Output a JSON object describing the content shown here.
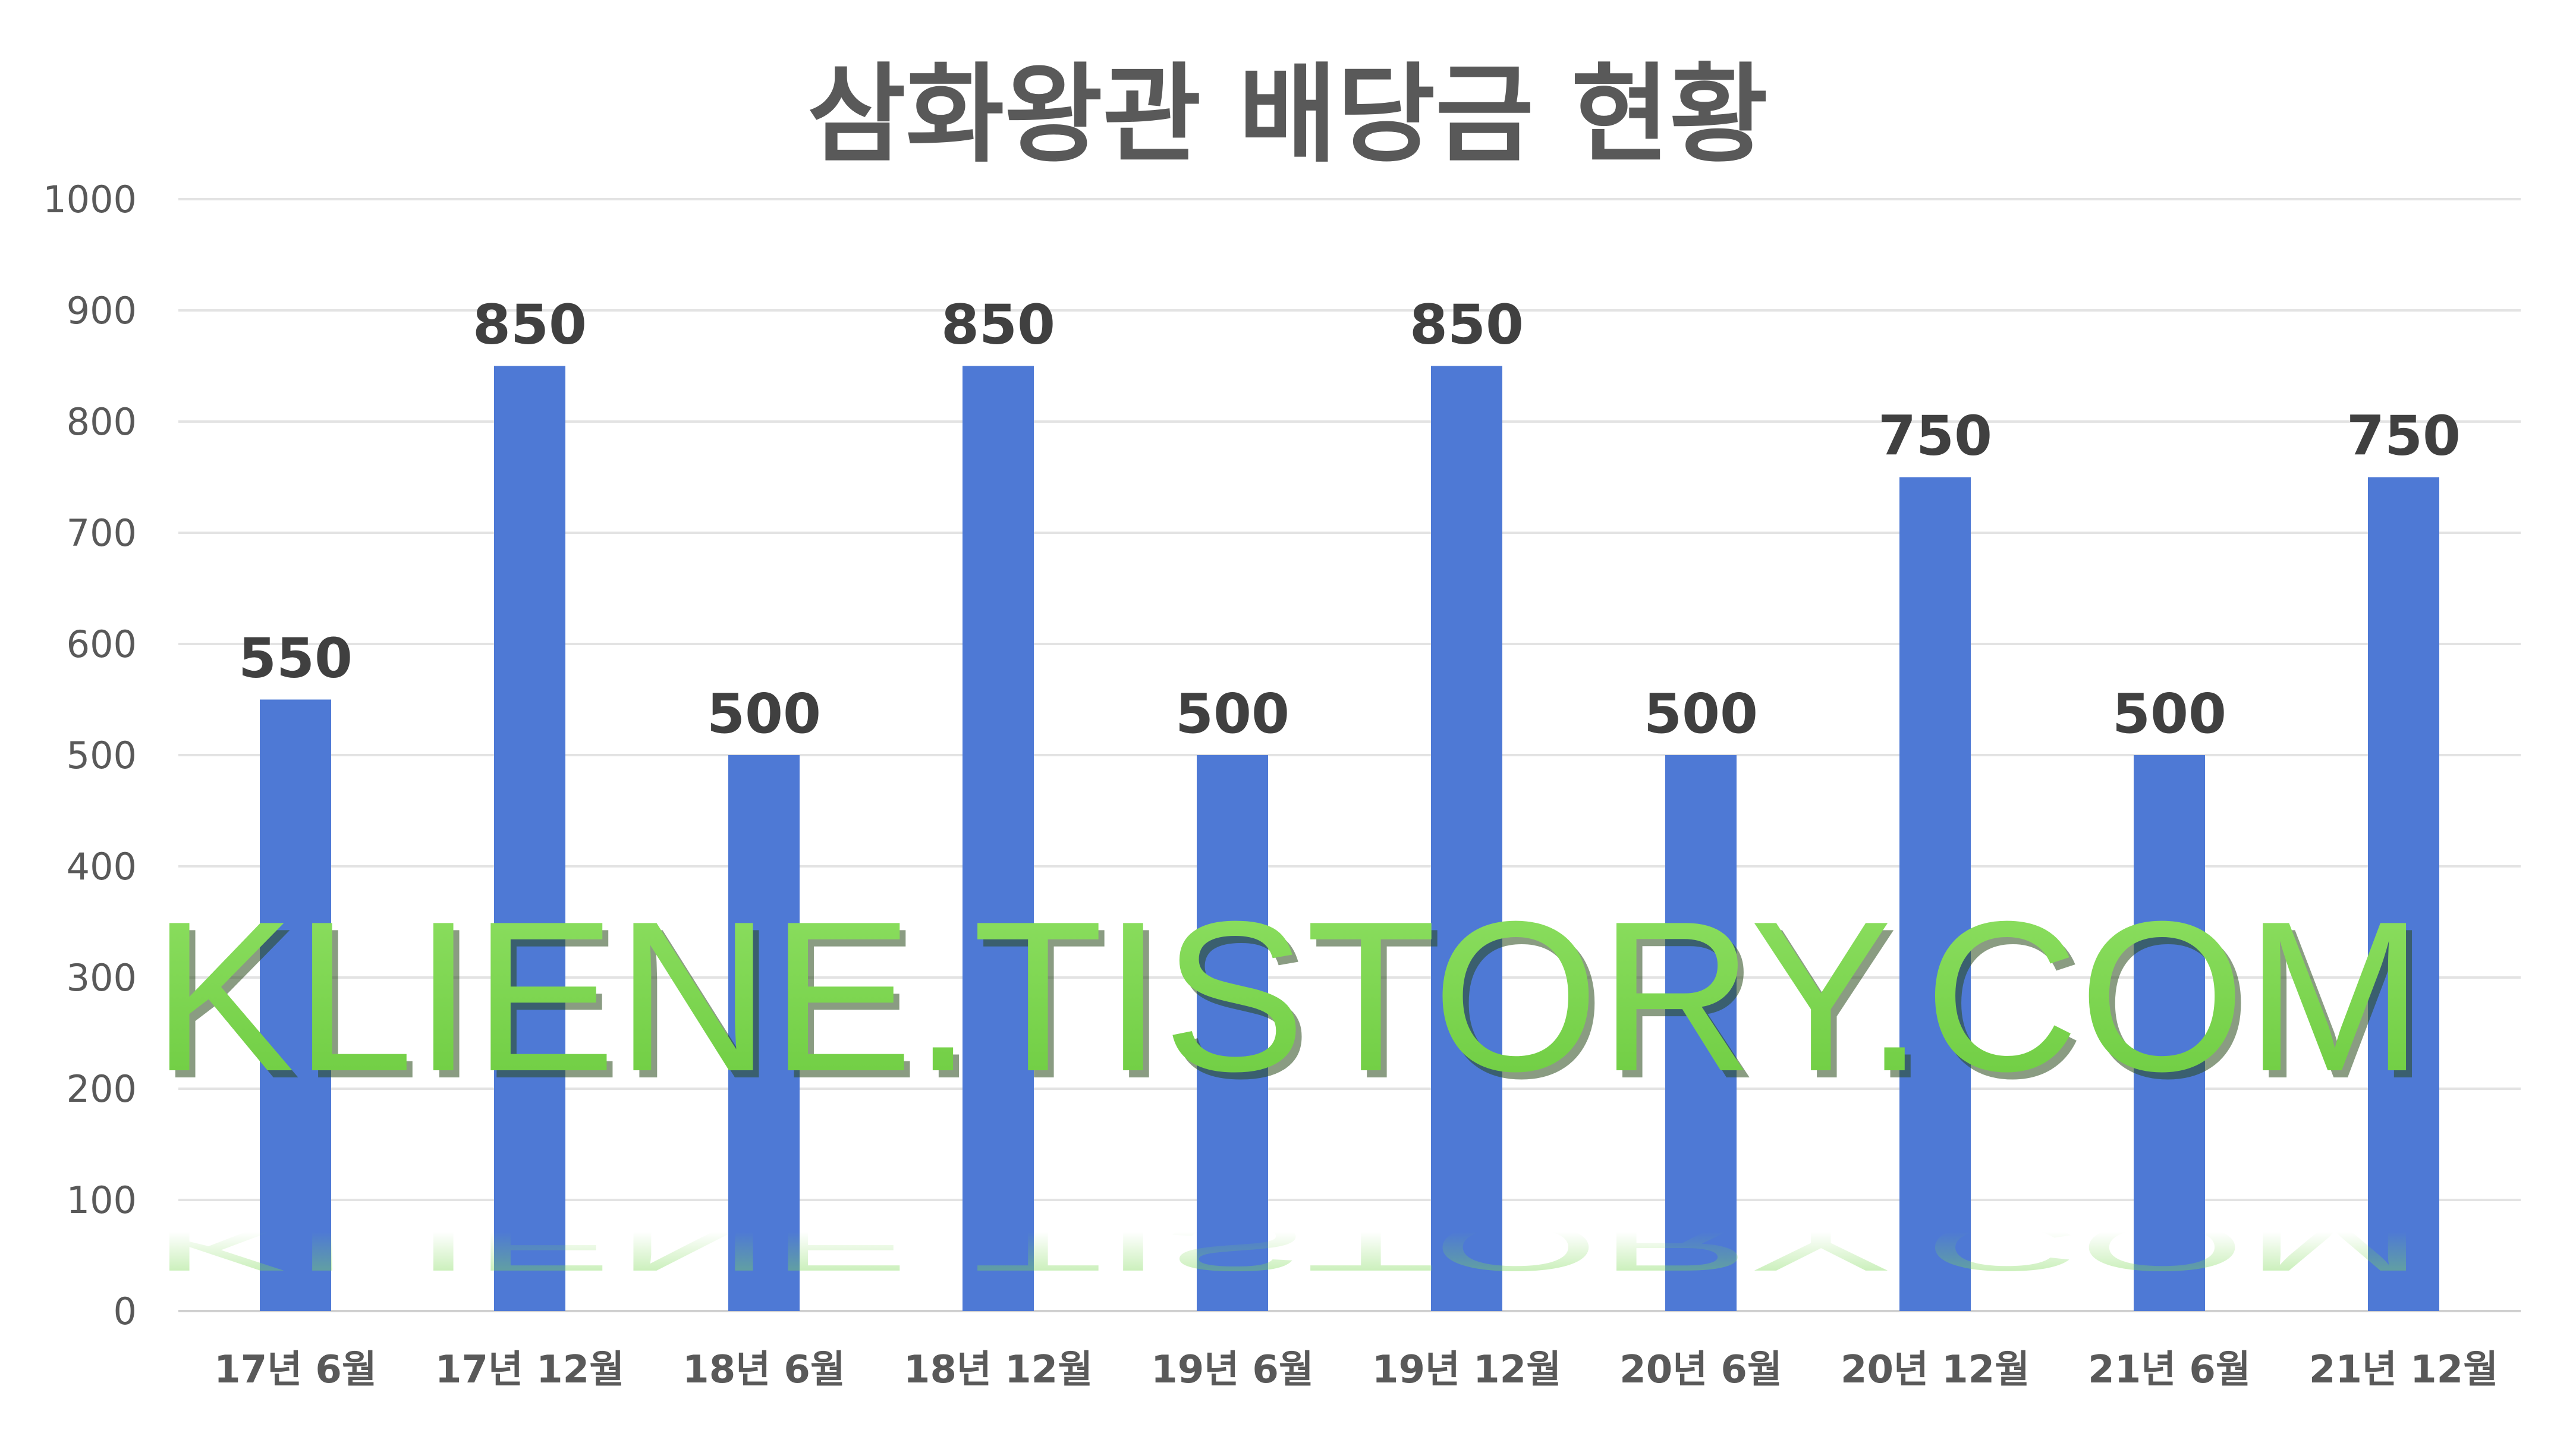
{
  "chart_data": {
    "type": "bar",
    "title": "삼화왕관 배당금 현황",
    "categories": [
      "17년 6월",
      "17년 12월",
      "18년 6월",
      "18년 12월",
      "19년 6월",
      "19년 12월",
      "20년 6월",
      "20년 12월",
      "21년 6월",
      "21년 12월"
    ],
    "values": [
      550,
      850,
      500,
      850,
      500,
      850,
      500,
      750,
      500,
      750
    ],
    "data_labels": [
      "550",
      "850",
      "500",
      "850",
      "500",
      "850",
      "500",
      "750",
      "500",
      "750"
    ],
    "ylim": [
      0,
      1000
    ],
    "yticks": [
      "0",
      "100",
      "200",
      "300",
      "400",
      "500",
      "600",
      "700",
      "800",
      "900",
      "1000"
    ],
    "grid": true,
    "legend": "none",
    "bar_color": "#4e79d5",
    "watermark": "KLIENE.TISTORY.COM",
    "watermark_color": "#7ed957"
  }
}
